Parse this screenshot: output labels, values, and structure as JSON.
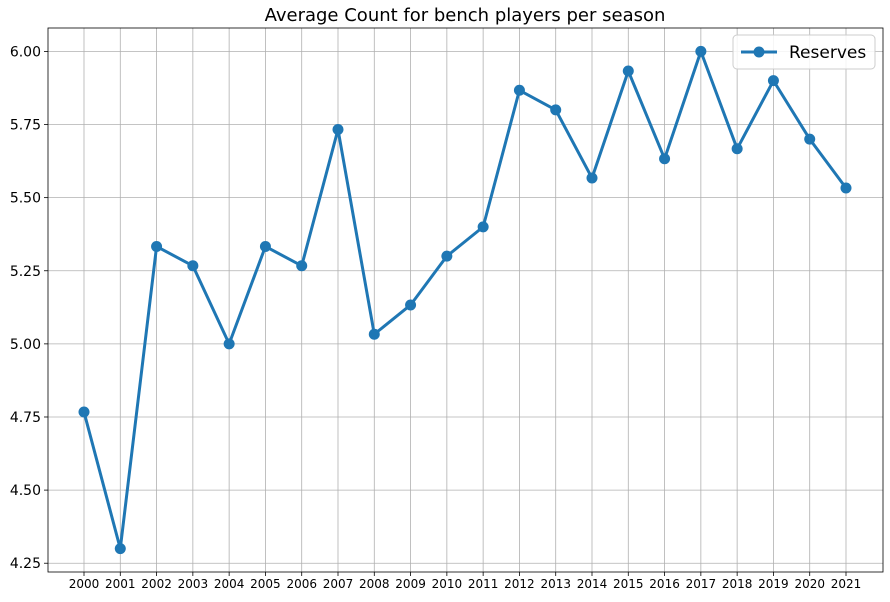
{
  "chart_data": {
    "type": "line",
    "title": "Average Count for bench players per season",
    "xlabel": "",
    "ylabel": "",
    "categories": [
      "2000",
      "2001",
      "2002",
      "2003",
      "2004",
      "2005",
      "2006",
      "2007",
      "2008",
      "2009",
      "2010",
      "2011",
      "2012",
      "2013",
      "2014",
      "2015",
      "2016",
      "2017",
      "2018",
      "2019",
      "2020",
      "2021"
    ],
    "series": [
      {
        "name": "Reserves",
        "color": "#1f77b4",
        "values": [
          4.767,
          4.3,
          5.333,
          5.267,
          5.0,
          5.333,
          5.267,
          5.733,
          5.033,
          5.133,
          5.3,
          5.4,
          5.867,
          5.8,
          5.567,
          5.933,
          5.633,
          6.0,
          5.667,
          5.9,
          5.7,
          5.533
        ]
      }
    ],
    "ylim": [
      4.22,
      6.08
    ],
    "yticks": [
      "4.25",
      "4.50",
      "4.75",
      "5.00",
      "5.25",
      "5.50",
      "5.75",
      "6.00"
    ],
    "grid": true,
    "legend_position": "top-right"
  }
}
